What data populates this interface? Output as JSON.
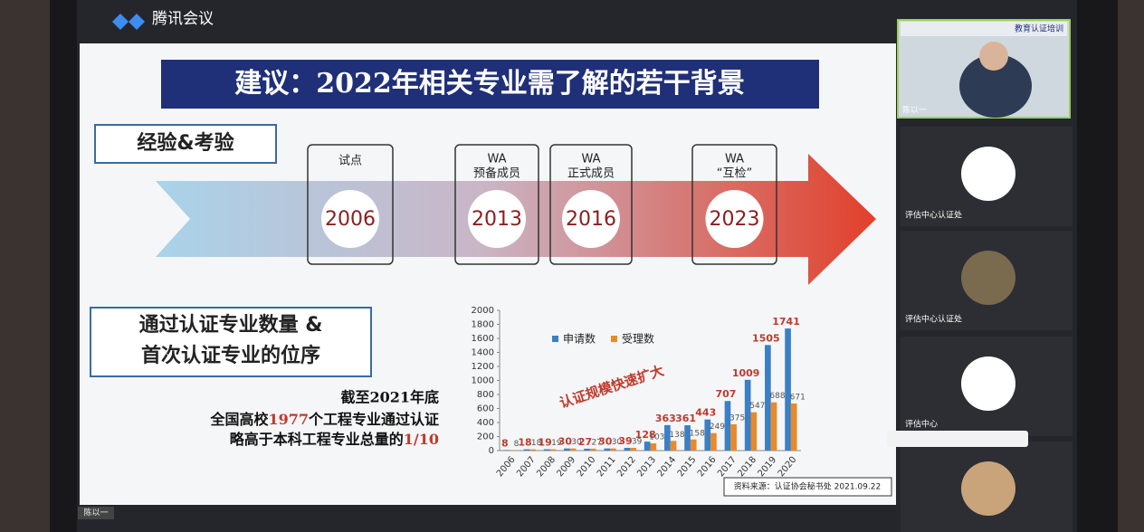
{
  "app": {
    "name": "腾讯会议"
  },
  "slide": {
    "title": "建议：2022年相关专业需了解的若干背景",
    "section1": "经验&考验",
    "timeline": [
      {
        "label": [
          "试点"
        ],
        "year": "2006"
      },
      {
        "label": [
          "WA",
          "预备成员"
        ],
        "year": "2013"
      },
      {
        "label": [
          "WA",
          "正式成员"
        ],
        "year": "2016"
      },
      {
        "label": [
          "WA",
          "“互检”"
        ],
        "year": "2023"
      }
    ],
    "section2": [
      "通过认证专业数量 &",
      "首次认证专业的位序"
    ],
    "note": {
      "line1": "截至2021年底",
      "line2": [
        "全国高校",
        "1977",
        "个工程专业通过认证"
      ],
      "line3": [
        "略高于本科工程专业总量的",
        "1/10"
      ]
    },
    "source": "资料来源：认证协会秘书处  2021.09.22",
    "speaker": "陈以一"
  },
  "chart_data": {
    "type": "bar",
    "annotation": "认证规模快速扩大",
    "categories": [
      "2006",
      "2007",
      "2008",
      "2009",
      "2010",
      "2011",
      "2012",
      "2013",
      "2014",
      "2015",
      "2016",
      "2017",
      "2018",
      "2019",
      "2020"
    ],
    "series": [
      {
        "name": "申请数",
        "color": "#3b7fc4",
        "values": [
          8,
          18,
          19,
          30,
          27,
          30,
          39,
          128,
          363,
          361,
          443,
          707,
          1009,
          1505,
          1741
        ]
      },
      {
        "name": "受理数",
        "color": "#e88a2c",
        "values": [
          8,
          18,
          19,
          30,
          27,
          30,
          39,
          103,
          138,
          158,
          249,
          375,
          547,
          688,
          671
        ]
      }
    ],
    "ylim": [
      0,
      2000
    ],
    "yticks": [
      0,
      200,
      400,
      600,
      800,
      1000,
      1200,
      1400,
      1600,
      1800,
      2000
    ]
  },
  "participants": [
    {
      "name": "陈以一",
      "banner": "教育认证培训"
    },
    {
      "name": "评估中心认证处"
    },
    {
      "name": "评估中心认证处"
    },
    {
      "name": "评估中心"
    }
  ]
}
